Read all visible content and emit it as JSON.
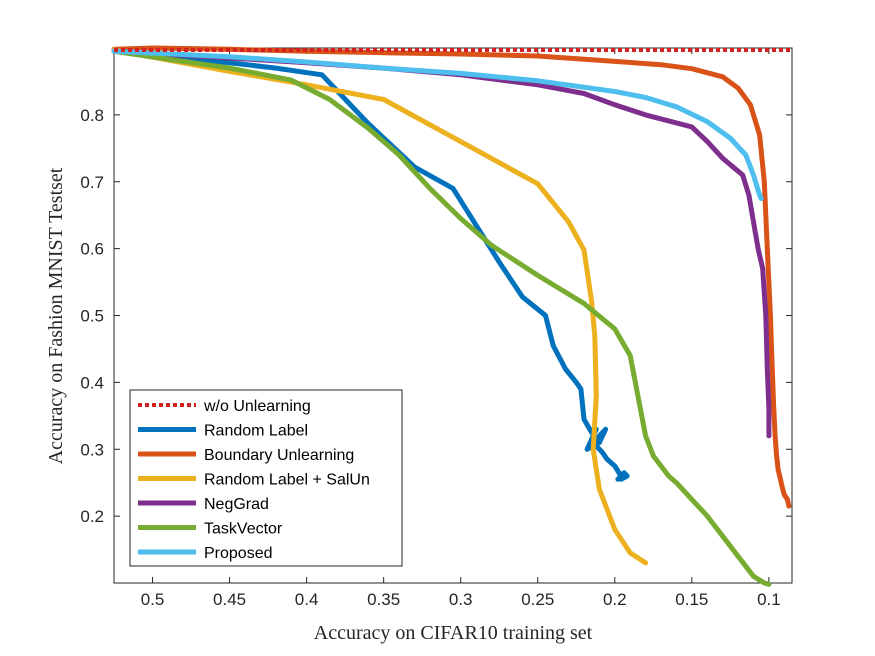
{
  "chart_data": {
    "type": "line",
    "xlabel": "Accuracy on CIFAR10 training set",
    "ylabel": "Accuracy on Fashion MNIST Testset",
    "xlim": [
      0.525,
      0.085
    ],
    "ylim": [
      0.1,
      0.9
    ],
    "x_reversed": true,
    "xticks": [
      0.5,
      0.45,
      0.4,
      0.35,
      0.3,
      0.25,
      0.2,
      0.15,
      0.1
    ],
    "xtick_labels": [
      "0.5",
      "0.45",
      "0.4",
      "0.35",
      "0.3",
      "0.25",
      "0.2",
      "0.15",
      "0.1"
    ],
    "yticks": [
      0.2,
      0.3,
      0.4,
      0.5,
      0.6,
      0.7,
      0.8
    ],
    "ytick_labels": [
      "0.2",
      "0.3",
      "0.4",
      "0.5",
      "0.6",
      "0.7",
      "0.8"
    ],
    "grid": false,
    "legend_position": "bottom-left",
    "series": [
      {
        "name": "w/o Unlearning",
        "color": "#d42020",
        "dashed": true,
        "x": [
          0.525,
          0.085
        ],
        "y": [
          0.897,
          0.897
        ]
      },
      {
        "name": "Random Label",
        "color": "#0072bd",
        "x": [
          0.525,
          0.45,
          0.42,
          0.39,
          0.36,
          0.33,
          0.305,
          0.29,
          0.275,
          0.26,
          0.245,
          0.24,
          0.232,
          0.225,
          0.222,
          0.22,
          0.215,
          0.212,
          0.218,
          0.21,
          0.206,
          0.214,
          0.208,
          0.205,
          0.2,
          0.196,
          0.198,
          0.194,
          0.192,
          0.196
        ],
        "y": [
          0.895,
          0.878,
          0.87,
          0.86,
          0.787,
          0.722,
          0.69,
          0.635,
          0.58,
          0.528,
          0.5,
          0.455,
          0.42,
          0.4,
          0.39,
          0.345,
          0.325,
          0.33,
          0.3,
          0.31,
          0.33,
          0.31,
          0.295,
          0.285,
          0.275,
          0.26,
          0.255,
          0.265,
          0.26,
          0.255
        ]
      },
      {
        "name": "Boundary Unlearning",
        "color": "#d95319",
        "x": [
          0.525,
          0.5,
          0.45,
          0.4,
          0.35,
          0.3,
          0.25,
          0.2,
          0.17,
          0.15,
          0.13,
          0.12,
          0.112,
          0.106,
          0.103,
          0.101,
          0.099,
          0.098,
          0.097,
          0.096,
          0.095,
          0.094,
          0.093,
          0.092,
          0.091,
          0.09,
          0.088,
          0.087
        ],
        "y": [
          0.898,
          0.9,
          0.898,
          0.895,
          0.893,
          0.891,
          0.888,
          0.88,
          0.875,
          0.869,
          0.857,
          0.84,
          0.815,
          0.77,
          0.7,
          0.6,
          0.5,
          0.43,
          0.37,
          0.32,
          0.29,
          0.27,
          0.26,
          0.25,
          0.24,
          0.232,
          0.225,
          0.215
        ]
      },
      {
        "name": "Random Label + SalUn",
        "color": "#edb120",
        "x": [
          0.525,
          0.45,
          0.4,
          0.35,
          0.3,
          0.25,
          0.23,
          0.22,
          0.215,
          0.213,
          0.212,
          0.214,
          0.21,
          0.205,
          0.2,
          0.19,
          0.18
        ],
        "y": [
          0.897,
          0.865,
          0.845,
          0.823,
          0.76,
          0.697,
          0.64,
          0.598,
          0.52,
          0.47,
          0.38,
          0.3,
          0.24,
          0.21,
          0.18,
          0.145,
          0.13
        ]
      },
      {
        "name": "NegGrad",
        "color": "#7e2f8e",
        "x": [
          0.525,
          0.45,
          0.4,
          0.35,
          0.3,
          0.25,
          0.22,
          0.2,
          0.18,
          0.15,
          0.14,
          0.13,
          0.117,
          0.113,
          0.11,
          0.107,
          0.104,
          0.102,
          0.101,
          0.1,
          0.1
        ],
        "y": [
          0.895,
          0.885,
          0.878,
          0.87,
          0.86,
          0.845,
          0.832,
          0.815,
          0.8,
          0.782,
          0.76,
          0.735,
          0.71,
          0.68,
          0.64,
          0.6,
          0.57,
          0.5,
          0.42,
          0.36,
          0.32
        ]
      },
      {
        "name": "TaskVector",
        "color": "#77ac30",
        "x": [
          0.525,
          0.45,
          0.41,
          0.385,
          0.36,
          0.34,
          0.32,
          0.3,
          0.28,
          0.25,
          0.22,
          0.2,
          0.19,
          0.185,
          0.18,
          0.175,
          0.17,
          0.165,
          0.16,
          0.15,
          0.14,
          0.13,
          0.12,
          0.11,
          0.103,
          0.1
        ],
        "y": [
          0.895,
          0.87,
          0.852,
          0.823,
          0.78,
          0.74,
          0.69,
          0.645,
          0.605,
          0.56,
          0.518,
          0.48,
          0.44,
          0.38,
          0.32,
          0.29,
          0.275,
          0.26,
          0.25,
          0.225,
          0.2,
          0.17,
          0.14,
          0.11,
          0.1,
          0.098
        ]
      },
      {
        "name": "Proposed",
        "color": "#4dbeee",
        "x": [
          0.525,
          0.45,
          0.4,
          0.35,
          0.3,
          0.25,
          0.2,
          0.18,
          0.16,
          0.14,
          0.125,
          0.115,
          0.11,
          0.106,
          0.105
        ],
        "y": [
          0.895,
          0.887,
          0.879,
          0.87,
          0.862,
          0.851,
          0.835,
          0.826,
          0.812,
          0.79,
          0.765,
          0.74,
          0.71,
          0.68,
          0.675
        ]
      }
    ]
  }
}
